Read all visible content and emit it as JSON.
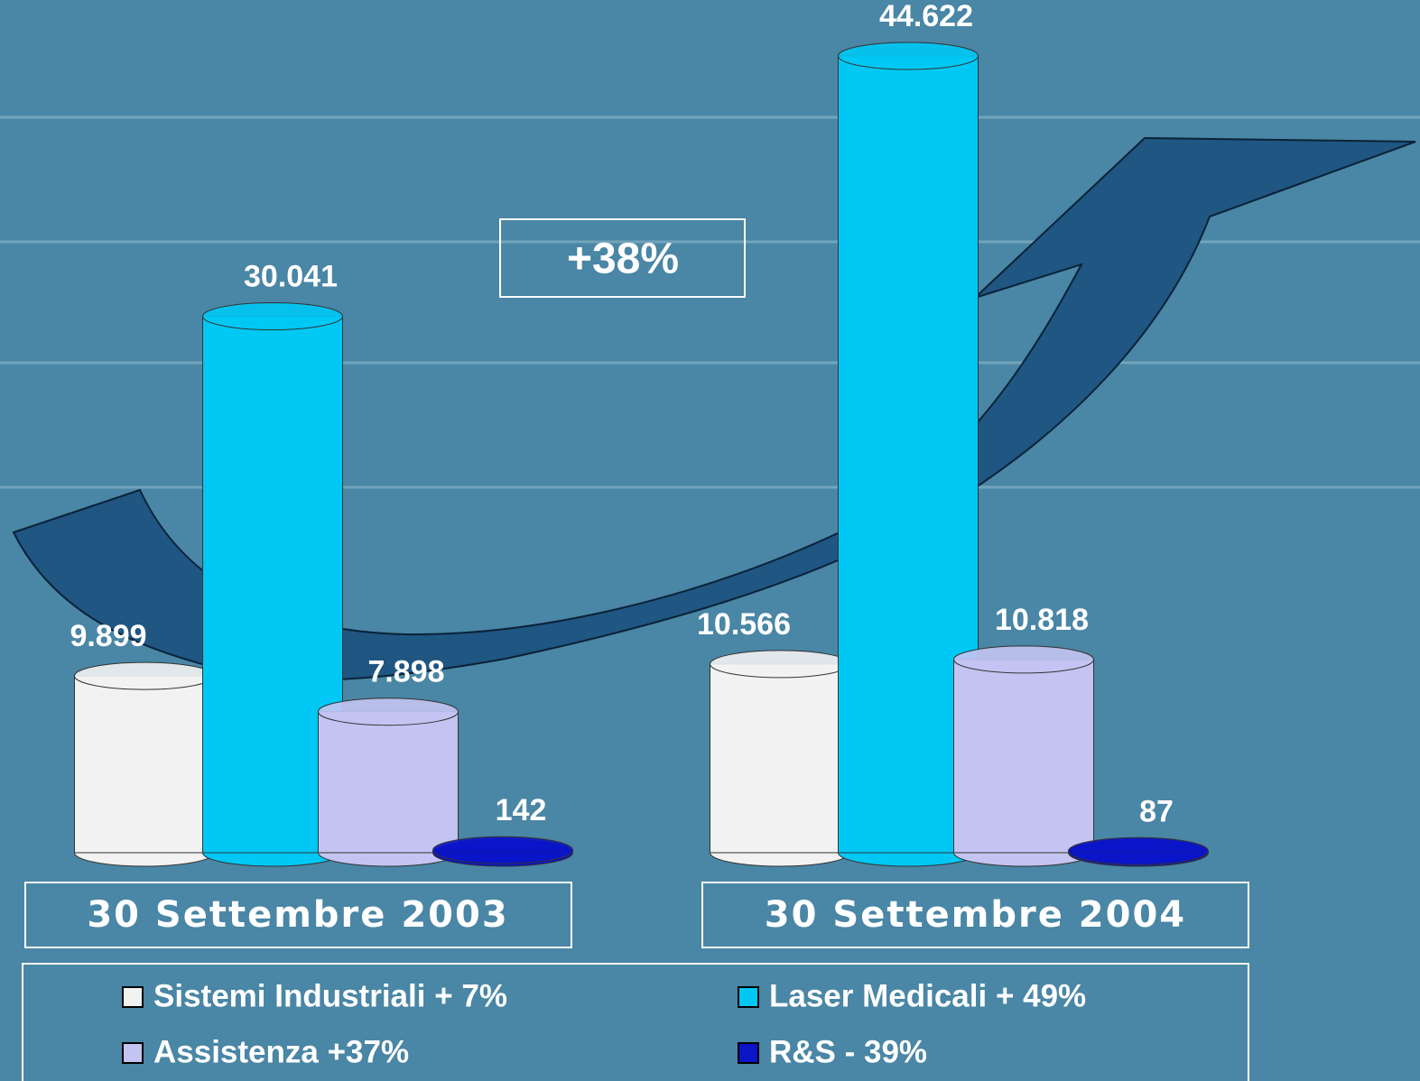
{
  "chart_data": {
    "type": "bar",
    "annotation": "+38%",
    "categories": [
      "30 Settembre 2003",
      "30 Settembre 2004"
    ],
    "series": [
      {
        "name": "Sistemi Industriali + 7%",
        "color": "#f2f2f2",
        "values": [
          9899,
          10566
        ],
        "value_labels": [
          "9.899",
          "10.566"
        ]
      },
      {
        "name": "Laser Medicali + 49%",
        "color": "#00c8f5",
        "values": [
          30041,
          44622
        ],
        "value_labels": [
          "30.041",
          "44.622"
        ]
      },
      {
        "name": "Assistenza +37%",
        "color": "#c4c4f2",
        "values": [
          7898,
          10818
        ],
        "value_labels": [
          "7.898",
          "10.818"
        ]
      },
      {
        "name": "R&S - 39%",
        "color": "#0a14c8",
        "values": [
          142,
          87
        ],
        "value_labels": [
          "142",
          "87"
        ]
      }
    ]
  }
}
